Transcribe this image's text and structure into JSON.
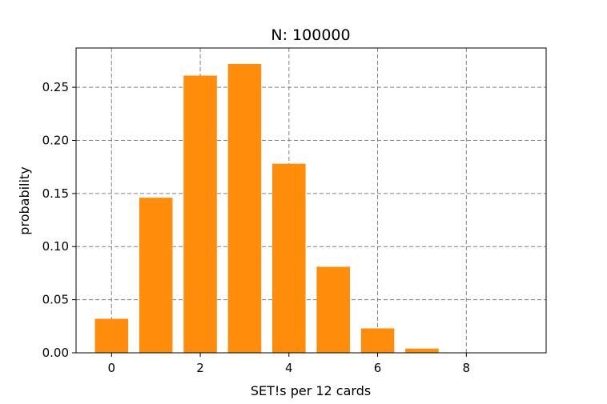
{
  "chart_data": {
    "type": "bar",
    "title": "N: 100000",
    "xlabel": "SET!s per 12 cards",
    "ylabel": "probability",
    "categories": [
      0,
      1,
      2,
      3,
      4,
      5,
      6,
      7,
      8,
      9
    ],
    "values": [
      0.032,
      0.146,
      0.261,
      0.272,
      0.178,
      0.081,
      0.023,
      0.004,
      0.0003,
      0.0
    ],
    "xlim": [
      -0.8,
      9.8
    ],
    "ylim": [
      0,
      0.287
    ],
    "xticks": [
      0,
      2,
      4,
      6,
      8
    ],
    "yticks": [
      0.0,
      0.05,
      0.1,
      0.15,
      0.2,
      0.25
    ],
    "ytick_labels": [
      "0.00",
      "0.05",
      "0.10",
      "0.15",
      "0.20",
      "0.25"
    ],
    "grid": true,
    "grid_style": "dashed",
    "bar_color": "#ff8c0a",
    "legend": null
  }
}
